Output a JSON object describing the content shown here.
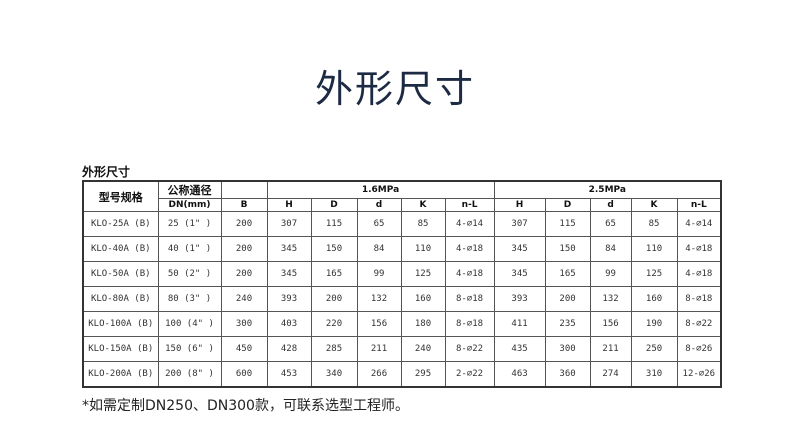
{
  "title": "外形尺寸",
  "table": {
    "caption": "外形尺寸",
    "headers": {
      "model": "型号规格",
      "nominal": "公称通径",
      "dn": "DN(mm)",
      "b": "B",
      "p1": "1.6MPa",
      "p2": "2.5MPa",
      "sub": [
        "H",
        "D",
        "d",
        "K",
        "n-L"
      ]
    },
    "rows": [
      [
        "KLO-25A (B)",
        "25 (1\" )",
        "200",
        "307",
        "115",
        "65",
        "85",
        "4-⌀14",
        "307",
        "115",
        "65",
        "85",
        "4-⌀14"
      ],
      [
        "KLO-40A (B)",
        "40 (1\" )",
        "200",
        "345",
        "150",
        "84",
        "110",
        "4-⌀18",
        "345",
        "150",
        "84",
        "110",
        "4-⌀18"
      ],
      [
        "KLO-50A (B)",
        "50 (2\" )",
        "200",
        "345",
        "165",
        "99",
        "125",
        "4-⌀18",
        "345",
        "165",
        "99",
        "125",
        "4-⌀18"
      ],
      [
        "KLO-80A (B)",
        "80 (3\" )",
        "240",
        "393",
        "200",
        "132",
        "160",
        "8-⌀18",
        "393",
        "200",
        "132",
        "160",
        "8-⌀18"
      ],
      [
        "KLO-100A (B)",
        "100 (4\" )",
        "300",
        "403",
        "220",
        "156",
        "180",
        "8-⌀18",
        "411",
        "235",
        "156",
        "190",
        "8-⌀22"
      ],
      [
        "KLO-150A (B)",
        "150 (6\" )",
        "450",
        "428",
        "285",
        "211",
        "240",
        "8-⌀22",
        "435",
        "300",
        "211",
        "250",
        "8-⌀26"
      ],
      [
        "KLO-200A (B)",
        "200 (8\" )",
        "600",
        "453",
        "340",
        "266",
        "295",
        "2-⌀22",
        "463",
        "360",
        "274",
        "310",
        "12-⌀26"
      ]
    ]
  },
  "note": "*如需定制DN250、DN300款，可联系选型工程师。"
}
